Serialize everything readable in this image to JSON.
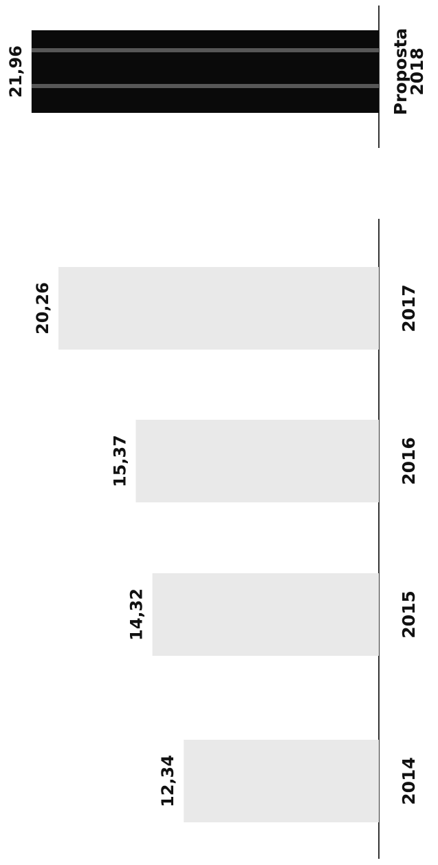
{
  "chart_data": {
    "type": "bar",
    "orientation": "horizontal",
    "categories": [
      "2014",
      "2015",
      "2016",
      "2017",
      "Proposta 2018"
    ],
    "category_lines": [
      [
        "2014"
      ],
      [
        "2015"
      ],
      [
        "2016"
      ],
      [
        "2017"
      ],
      [
        "Proposta",
        "2018"
      ]
    ],
    "values": [
      12.34,
      14.32,
      15.37,
      20.26,
      21.96
    ],
    "value_labels": [
      "12,34",
      "14,32",
      "15,37",
      "20,26",
      "21,96"
    ],
    "highlight_index": 4,
    "colors": {
      "bar": "#e9e9e9",
      "highlight": "#0a0a0a",
      "axis": "#333333",
      "text": "#111111"
    },
    "title": "",
    "xlabel": "",
    "ylabel": "",
    "grid": false,
    "legend": "none",
    "orientation_note": "rotated"
  }
}
